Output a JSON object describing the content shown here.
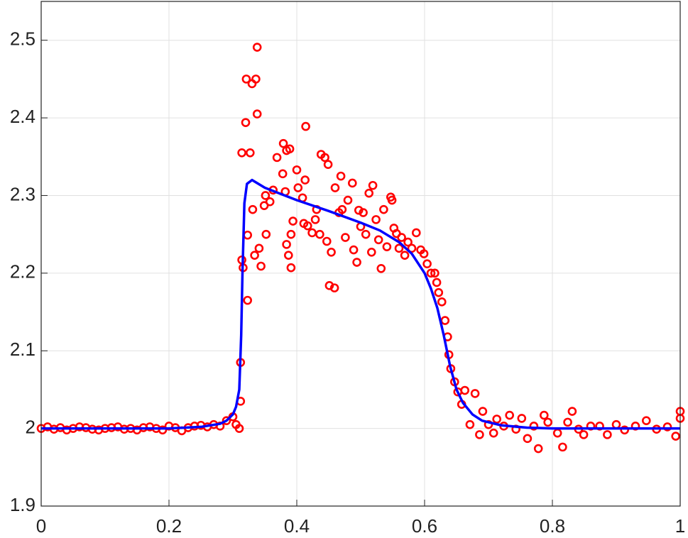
{
  "chart_data": {
    "type": "scatter",
    "xlim": [
      0,
      1
    ],
    "ylim": [
      1.9,
      2.55
    ],
    "xticks": [
      0,
      0.2,
      0.4,
      0.6,
      0.8,
      1
    ],
    "yticks": [
      1.9,
      2,
      2.1,
      2.2,
      2.3,
      2.4,
      2.5
    ],
    "grid": true,
    "series": [
      {
        "type": "scatter",
        "color": "#ff0000",
        "x": [
          0,
          0.01,
          0.02,
          0.03,
          0.04,
          0.05,
          0.06,
          0.07,
          0.08,
          0.09,
          0.1,
          0.11,
          0.12,
          0.13,
          0.14,
          0.15,
          0.16,
          0.17,
          0.18,
          0.19,
          0.2,
          0.21,
          0.22,
          0.23,
          0.24,
          0.25,
          0.26,
          0.27,
          0.28,
          0.29,
          0.3,
          0.305,
          0.31,
          0.338,
          0.321,
          0.33,
          0.336,
          0.32,
          0.338,
          0.314,
          0.327,
          0.323,
          0.323,
          0.314,
          0.316,
          0.312,
          0.312,
          0.331,
          0.334,
          0.341,
          0.344,
          0.352,
          0.349,
          0.358,
          0.363,
          0.351,
          0.369,
          0.379,
          0.384,
          0.389,
          0.378,
          0.382,
          0.384,
          0.387,
          0.391,
          0.391,
          0.394,
          0.4,
          0.402,
          0.409,
          0.413,
          0.414,
          0.411,
          0.417,
          0.424,
          0.429,
          0.431,
          0.436,
          0.438,
          0.444,
          0.449,
          0.447,
          0.451,
          0.459,
          0.454,
          0.46,
          0.466,
          0.469,
          0.471,
          0.476,
          0.48,
          0.487,
          0.489,
          0.494,
          0.497,
          0.5,
          0.504,
          0.508,
          0.513,
          0.517,
          0.519,
          0.524,
          0.528,
          0.532,
          0.536,
          0.541,
          0.547,
          0.549,
          0.552,
          0.556,
          0.56,
          0.564,
          0.569,
          0.574,
          0.58,
          0.587,
          0.594,
          0.599,
          0.604,
          0.61,
          0.616,
          0.619,
          0.622,
          0.627,
          0.632,
          0.636,
          0.638,
          0.641,
          0.647,
          0.652,
          0.658,
          0.663,
          0.671,
          0.679,
          0.686,
          0.691,
          0.7,
          0.708,
          0.713,
          0.724,
          0.733,
          0.743,
          0.752,
          0.761,
          0.771,
          0.778,
          0.787,
          0.793,
          0.808,
          0.816,
          0.824,
          0.831,
          0.841,
          0.849,
          0.86,
          0.874,
          0.886,
          0.9,
          0.913,
          0.93,
          0.947,
          0.963,
          0.98,
          0.993,
          1,
          1
        ],
        "values": [
          2,
          2.002,
          1.999,
          2.001,
          1.998,
          2,
          2.002,
          2.001,
          1.999,
          1.998,
          2,
          2.001,
          2.002,
          1.999,
          2,
          1.998,
          2.001,
          2.002,
          2,
          1.998,
          2.003,
          2.001,
          1.997,
          2.001,
          2.003,
          2.004,
          2.002,
          2.005,
          2.003,
          2.01,
          2.015,
          2.005,
          2.0,
          2.491,
          2.45,
          2.444,
          2.45,
          2.394,
          2.405,
          2.355,
          2.355,
          2.249,
          2.165,
          2.217,
          2.207,
          2.035,
          2.085,
          2.282,
          2.223,
          2.232,
          2.209,
          2.25,
          2.287,
          2.292,
          2.307,
          2.3,
          2.349,
          2.367,
          2.358,
          2.36,
          2.328,
          2.305,
          2.237,
          2.223,
          2.207,
          2.25,
          2.267,
          2.333,
          2.31,
          2.297,
          2.32,
          2.389,
          2.264,
          2.261,
          2.252,
          2.269,
          2.282,
          2.25,
          2.353,
          2.349,
          2.34,
          2.241,
          2.184,
          2.181,
          2.227,
          2.31,
          2.278,
          2.325,
          2.282,
          2.246,
          2.294,
          2.316,
          2.23,
          2.214,
          2.281,
          2.26,
          2.278,
          2.25,
          2.303,
          2.227,
          2.313,
          2.269,
          2.243,
          2.206,
          2.282,
          2.234,
          2.298,
          2.294,
          2.258,
          2.251,
          2.232,
          2.246,
          2.223,
          2.24,
          2.232,
          2.252,
          2.23,
          2.225,
          2.212,
          2.2,
          2.2,
          2.188,
          2.175,
          2.163,
          2.139,
          2.118,
          2.095,
          2.077,
          2.06,
          2.047,
          2.031,
          2.049,
          2.005,
          2.045,
          1.992,
          2.022,
          2.005,
          1.994,
          2.012,
          2.003,
          2.017,
          1.999,
          2.013,
          1.987,
          2.003,
          1.974,
          2.017,
          2.008,
          1.994,
          1.976,
          2.008,
          2.022,
          1.999,
          1.992,
          2.003,
          2.003,
          1.992,
          2.005,
          1.998,
          2.003,
          2.01,
          1.999,
          2.002,
          1.99,
          2.013,
          2.022
        ]
      },
      {
        "type": "line",
        "color": "#0000ff",
        "x": [
          0,
          0.1,
          0.2,
          0.25,
          0.28,
          0.29,
          0.3,
          0.305,
          0.31,
          0.313,
          0.315,
          0.318,
          0.322,
          0.33,
          0.35,
          0.4,
          0.45,
          0.5,
          0.53,
          0.56,
          0.58,
          0.6,
          0.61,
          0.62,
          0.63,
          0.64,
          0.65,
          0.66,
          0.675,
          0.69,
          0.72,
          0.76,
          0.8,
          0.9,
          1
        ],
        "values": [
          2,
          2,
          2,
          2.002,
          2.006,
          2.01,
          2.018,
          2.028,
          2.05,
          2.12,
          2.2,
          2.29,
          2.315,
          2.32,
          2.31,
          2.294,
          2.28,
          2.265,
          2.255,
          2.24,
          2.225,
          2.2,
          2.18,
          2.155,
          2.12,
          2.08,
          2.05,
          2.033,
          2.018,
          2.01,
          2.004,
          2.001,
          2,
          2,
          2
        ]
      }
    ]
  }
}
